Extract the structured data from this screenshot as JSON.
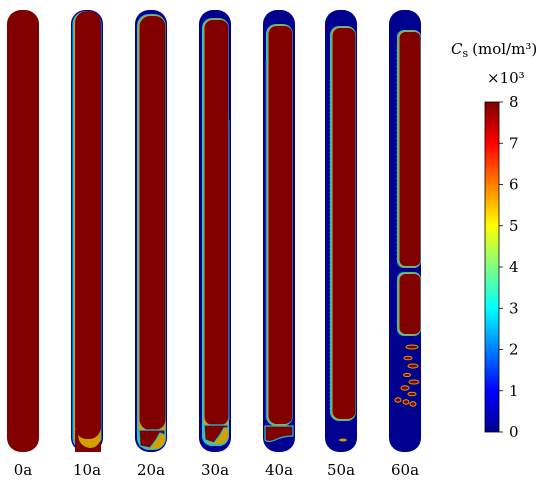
{
  "chart_data": {
    "type": "heatmap",
    "colorbar": {
      "symbol": "C",
      "subscript": "s",
      "unit": "(mol/m³)",
      "multiplier": "×10³",
      "range": [
        0,
        8
      ],
      "tick_labels": [
        "8",
        "7",
        "6",
        "5",
        "4",
        "3",
        "2",
        "1",
        "0"
      ]
    },
    "panels": [
      {
        "label": "0a"
      },
      {
        "label": "10a"
      },
      {
        "label": "20a"
      },
      {
        "label": "30a"
      },
      {
        "label": "40a"
      },
      {
        "label": "50a"
      },
      {
        "label": "60a"
      }
    ],
    "colors": {
      "high": "#800000",
      "low": "#00008f"
    }
  }
}
